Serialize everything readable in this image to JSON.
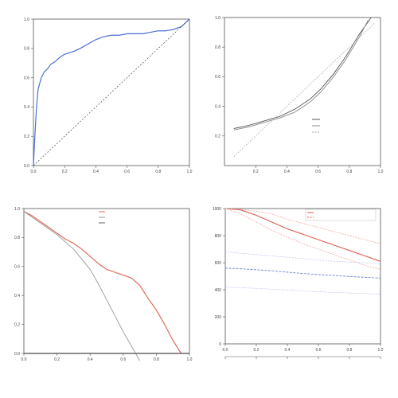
{
  "chart_data": [
    {
      "id": "roc",
      "type": "line",
      "title": "",
      "xlabel": "",
      "ylabel": "",
      "xlim": [
        0,
        1
      ],
      "ylim": [
        0,
        1
      ],
      "xticks": [
        0,
        0.2,
        0.4,
        0.6,
        0.8,
        1.0
      ],
      "yticks": [
        0,
        0.2,
        0.4,
        0.6,
        0.8,
        1.0
      ],
      "xtick_labels": [
        "0.0",
        "0.2",
        "0.4",
        "0.6",
        "0.8",
        "1.0"
      ],
      "ytick_labels": [
        "0.0",
        "0.2",
        "0.4",
        "0.6",
        "0.8",
        "1.0"
      ],
      "colors": {
        "roc": "#4a6fd1",
        "reference": "#444444"
      },
      "series": [
        {
          "x": [
            0,
            0.01,
            0.02,
            0.03,
            0.05,
            0.07,
            0.09,
            0.11,
            0.14,
            0.17,
            0.2,
            0.23,
            0.26,
            0.3,
            0.35,
            0.4,
            0.45,
            0.5,
            0.55,
            0.6,
            0.65,
            0.7,
            0.75,
            0.8,
            0.85,
            0.9,
            0.95,
            1.0
          ],
          "y": [
            0,
            0.22,
            0.4,
            0.52,
            0.6,
            0.64,
            0.66,
            0.69,
            0.71,
            0.74,
            0.76,
            0.77,
            0.78,
            0.8,
            0.83,
            0.86,
            0.88,
            0.89,
            0.89,
            0.9,
            0.9,
            0.9,
            0.91,
            0.92,
            0.92,
            0.93,
            0.95,
            1.0
          ]
        },
        {
          "style": "dashed",
          "x": [
            0,
            1
          ],
          "y": [
            0,
            1
          ]
        }
      ]
    },
    {
      "id": "calibration",
      "type": "line",
      "title": "",
      "xlabel": "",
      "ylabel": "",
      "xlim": [
        0,
        1
      ],
      "ylim": [
        0,
        1
      ],
      "xticks": [
        0.2,
        0.4,
        0.6,
        0.8,
        1.0
      ],
      "yticks": [
        0.2,
        0.4,
        0.6,
        0.8,
        1.0
      ],
      "xtick_labels": [
        "0.2",
        "0.4",
        "0.6",
        "0.8",
        "1.0"
      ],
      "ytick_labels": [
        "0.2",
        "0.4",
        "0.6",
        "0.8",
        "1.0"
      ],
      "legend_position": "center-right",
      "legend": [
        "",
        "",
        ""
      ],
      "notes_left": "",
      "notes_right": "",
      "colors": {
        "apparent": "#555555",
        "bias_corrected": "#888888",
        "ideal": "#aaaaaa"
      },
      "series": [
        {
          "x": [
            0.06,
            0.15,
            0.25,
            0.35,
            0.45,
            0.55,
            0.62,
            0.7,
            0.78,
            0.86,
            0.94
          ],
          "y": [
            0.25,
            0.27,
            0.3,
            0.33,
            0.38,
            0.45,
            0.52,
            0.62,
            0.74,
            0.88,
            1.0
          ]
        },
        {
          "x": [
            0.06,
            0.15,
            0.25,
            0.35,
            0.45,
            0.55,
            0.62,
            0.7,
            0.78,
            0.86,
            0.92
          ],
          "y": [
            0.24,
            0.26,
            0.29,
            0.32,
            0.36,
            0.43,
            0.5,
            0.6,
            0.72,
            0.86,
            0.98
          ]
        },
        {
          "style": "dashed",
          "x": [
            0.06,
            0.96
          ],
          "y": [
            0.06,
            0.96
          ]
        }
      ]
    },
    {
      "id": "decision_curve",
      "type": "line",
      "title": "",
      "xlabel": "",
      "ylabel": "",
      "xlim": [
        0,
        1
      ],
      "ylim": [
        0,
        1
      ],
      "xticks": [
        0,
        0.2,
        0.4,
        0.6,
        0.8,
        1.0
      ],
      "yticks": [
        0,
        0.2,
        0.4,
        0.6,
        0.8,
        1.0
      ],
      "xtick_labels": [
        "0.0",
        "0.2",
        "0.4",
        "0.6",
        "0.8",
        "1.0"
      ],
      "ytick_labels": [
        "0.0",
        "0.2",
        "0.4",
        "0.6",
        "0.8",
        "1.0"
      ],
      "legend_position": "top-right",
      "legend": [
        "",
        "",
        ""
      ],
      "colors": {
        "model": "#e06b5c",
        "all": "#999999",
        "none": "#666666"
      },
      "series": [
        {
          "x": [
            0,
            0.05,
            0.1,
            0.15,
            0.2,
            0.25,
            0.3,
            0.35,
            0.4,
            0.45,
            0.5,
            0.55,
            0.6,
            0.65,
            0.7,
            0.75,
            0.8,
            0.85,
            0.9,
            0.95
          ],
          "y": [
            0.98,
            0.95,
            0.91,
            0.87,
            0.83,
            0.79,
            0.76,
            0.72,
            0.67,
            0.62,
            0.58,
            0.56,
            0.54,
            0.52,
            0.47,
            0.38,
            0.3,
            0.2,
            0.09,
            0.0
          ]
        },
        {
          "x": [
            0,
            0.1,
            0.2,
            0.3,
            0.4,
            0.45,
            0.5,
            0.55,
            0.6,
            0.65,
            0.7
          ],
          "y": [
            0.98,
            0.9,
            0.82,
            0.72,
            0.58,
            0.48,
            0.37,
            0.26,
            0.15,
            0.05,
            -0.05
          ]
        },
        {
          "x": [
            0,
            1
          ],
          "y": [
            0,
            0
          ]
        }
      ]
    },
    {
      "id": "clinical_impact",
      "type": "line",
      "title": "",
      "xlabel": "",
      "ylabel": "",
      "x2label": "",
      "xlim": [
        0,
        1
      ],
      "ylim": [
        0,
        1000
      ],
      "xticks": [
        0,
        0.2,
        0.4,
        0.6,
        0.8,
        1.0
      ],
      "yticks": [
        0,
        200,
        400,
        600,
        800,
        1000
      ],
      "xtick_labels": [
        "0.0",
        "0.2",
        "0.4",
        "0.6",
        "0.8",
        "1.0"
      ],
      "ytick_labels": [
        "0",
        "200",
        "400",
        "600",
        "800",
        "1000"
      ],
      "x2tick_labels": [
        "",
        "",
        "",
        "",
        "",
        ""
      ],
      "legend_position": "top-right",
      "legend": [
        "",
        ""
      ],
      "colors": {
        "high_risk": "#e05c4f",
        "high_risk_band": "#f2a79f",
        "event": "#6b7fd6",
        "event_band": "#b4bfee"
      },
      "series": [
        {
          "x": [
            0,
            0.1,
            0.2,
            0.3,
            0.4,
            0.5,
            0.6,
            0.7,
            0.8,
            0.9,
            1.0
          ],
          "y": [
            1000,
            990,
            950,
            900,
            850,
            810,
            770,
            730,
            690,
            650,
            610
          ]
        },
        {
          "style": "dashed",
          "x": [
            0,
            0.1,
            0.2,
            0.3,
            0.4,
            0.5,
            0.6,
            0.7,
            0.8,
            0.9,
            1.0
          ],
          "y": [
            1000,
            995,
            980,
            960,
            920,
            890,
            860,
            830,
            800,
            770,
            740
          ]
        },
        {
          "style": "dashed",
          "x": [
            0,
            0.1,
            0.2,
            0.3,
            0.4,
            0.5,
            0.6,
            0.7,
            0.8,
            0.9,
            1.0
          ],
          "y": [
            1000,
            960,
            900,
            840,
            790,
            740,
            700,
            660,
            620,
            580,
            550
          ]
        },
        {
          "x": [
            0,
            0.1,
            0.2,
            0.3,
            0.4,
            0.5,
            0.6,
            0.7,
            0.8,
            0.9,
            1.0
          ],
          "y": [
            560,
            555,
            548,
            540,
            530,
            520,
            512,
            505,
            498,
            492,
            486
          ]
        },
        {
          "style": "dashed",
          "x": [
            0,
            0.1,
            0.2,
            0.3,
            0.4,
            0.5,
            0.6,
            0.7,
            0.8,
            0.9,
            1.0
          ],
          "y": [
            680,
            670,
            660,
            650,
            640,
            630,
            620,
            610,
            605,
            600,
            590
          ]
        },
        {
          "style": "dashed",
          "x": [
            0,
            0.1,
            0.2,
            0.3,
            0.4,
            0.5,
            0.6,
            0.7,
            0.8,
            0.9,
            1.0
          ],
          "y": [
            420,
            415,
            410,
            404,
            398,
            392,
            386,
            380,
            376,
            372,
            368
          ]
        }
      ]
    }
  ]
}
